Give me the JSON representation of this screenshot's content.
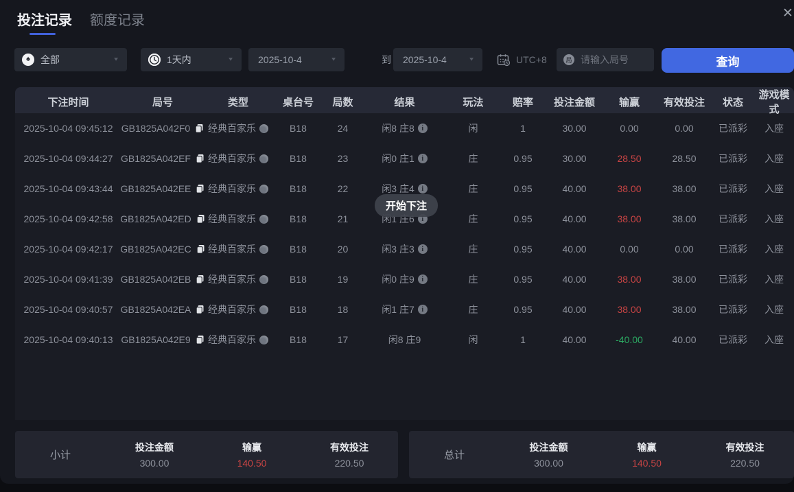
{
  "colors": {
    "accent_blue": "#4168e1",
    "loss_red": "#c84444",
    "win_green": "#2cab63",
    "panel_bg": "#15171e",
    "header_bg": "#262936"
  },
  "tabs": [
    {
      "label": "投注记录",
      "active": true
    },
    {
      "label": "额度记录",
      "active": false
    }
  ],
  "close_label": "✕",
  "filters": {
    "game_type": "全部",
    "time_range": "1天内",
    "date_from": "2025-10-4",
    "to_label": "到",
    "date_to": "2025-10-4",
    "timezone": "UTC+8",
    "round_icon_char": "局",
    "round_placeholder": "请输入局号",
    "search_label": "查询"
  },
  "toast": "开始下注",
  "table": {
    "columns": [
      "下注时间",
      "局号",
      "类型",
      "桌台号",
      "局数",
      "结果",
      "玩法",
      "赔率",
      "投注金额",
      "输赢",
      "有效投注",
      "状态",
      "游戏模式"
    ],
    "rows": [
      {
        "time": "2025-10-04 09:45:12",
        "round_id": "GB1825A042F0",
        "game_type": "经典百家乐",
        "table_no": "B18",
        "round_count": "24",
        "result": "闲8 庄8",
        "result_info": true,
        "play": "闲",
        "odds": "1",
        "bet_amount": "30.00",
        "win_loss": "0.00",
        "win_loss_tone": "normal",
        "valid_bet": "0.00",
        "status": "已派彩",
        "mode": "入座"
      },
      {
        "time": "2025-10-04 09:44:27",
        "round_id": "GB1825A042EF",
        "game_type": "经典百家乐",
        "table_no": "B18",
        "round_count": "23",
        "result": "闲0 庄1",
        "result_info": true,
        "play": "庄",
        "odds": "0.95",
        "bet_amount": "30.00",
        "win_loss": "28.50",
        "win_loss_tone": "red",
        "valid_bet": "28.50",
        "status": "已派彩",
        "mode": "入座"
      },
      {
        "time": "2025-10-04 09:43:44",
        "round_id": "GB1825A042EE",
        "game_type": "经典百家乐",
        "table_no": "B18",
        "round_count": "22",
        "result": "闲3 庄4",
        "result_info": true,
        "play": "庄",
        "odds": "0.95",
        "bet_amount": "40.00",
        "win_loss": "38.00",
        "win_loss_tone": "red",
        "valid_bet": "38.00",
        "status": "已派彩",
        "mode": "入座"
      },
      {
        "time": "2025-10-04 09:42:58",
        "round_id": "GB1825A042ED",
        "game_type": "经典百家乐",
        "table_no": "B18",
        "round_count": "21",
        "result": "闲1 庄6",
        "result_info": true,
        "play": "庄",
        "odds": "0.95",
        "bet_amount": "40.00",
        "win_loss": "38.00",
        "win_loss_tone": "red",
        "valid_bet": "38.00",
        "status": "已派彩",
        "mode": "入座"
      },
      {
        "time": "2025-10-04 09:42:17",
        "round_id": "GB1825A042EC",
        "game_type": "经典百家乐",
        "table_no": "B18",
        "round_count": "20",
        "result": "闲3 庄3",
        "result_info": true,
        "play": "庄",
        "odds": "0.95",
        "bet_amount": "40.00",
        "win_loss": "0.00",
        "win_loss_tone": "normal",
        "valid_bet": "0.00",
        "status": "已派彩",
        "mode": "入座"
      },
      {
        "time": "2025-10-04 09:41:39",
        "round_id": "GB1825A042EB",
        "game_type": "经典百家乐",
        "table_no": "B18",
        "round_count": "19",
        "result": "闲0 庄9",
        "result_info": true,
        "play": "庄",
        "odds": "0.95",
        "bet_amount": "40.00",
        "win_loss": "38.00",
        "win_loss_tone": "red",
        "valid_bet": "38.00",
        "status": "已派彩",
        "mode": "入座"
      },
      {
        "time": "2025-10-04 09:40:57",
        "round_id": "GB1825A042EA",
        "game_type": "经典百家乐",
        "table_no": "B18",
        "round_count": "18",
        "result": "闲1 庄7",
        "result_info": true,
        "play": "庄",
        "odds": "0.95",
        "bet_amount": "40.00",
        "win_loss": "38.00",
        "win_loss_tone": "red",
        "valid_bet": "38.00",
        "status": "已派彩",
        "mode": "入座"
      },
      {
        "time": "2025-10-04 09:40:13",
        "round_id": "GB1825A042E9",
        "game_type": "经典百家乐",
        "table_no": "B18",
        "round_count": "17",
        "result": "闲8 庄9",
        "result_info": false,
        "play": "闲",
        "odds": "1",
        "bet_amount": "40.00",
        "win_loss": "-40.00",
        "win_loss_tone": "green",
        "valid_bet": "40.00",
        "status": "已派彩",
        "mode": "入座"
      }
    ]
  },
  "summary": [
    {
      "label": "小计",
      "stats": [
        {
          "name": "投注金额",
          "value": "300.00",
          "tone": "normal"
        },
        {
          "name": "输赢",
          "value": "140.50",
          "tone": "red"
        },
        {
          "name": "有效投注",
          "value": "220.50",
          "tone": "normal"
        }
      ]
    },
    {
      "label": "总计",
      "stats": [
        {
          "name": "投注金额",
          "value": "300.00",
          "tone": "normal"
        },
        {
          "name": "输赢",
          "value": "140.50",
          "tone": "red"
        },
        {
          "name": "有效投注",
          "value": "220.50",
          "tone": "normal"
        }
      ]
    }
  ]
}
